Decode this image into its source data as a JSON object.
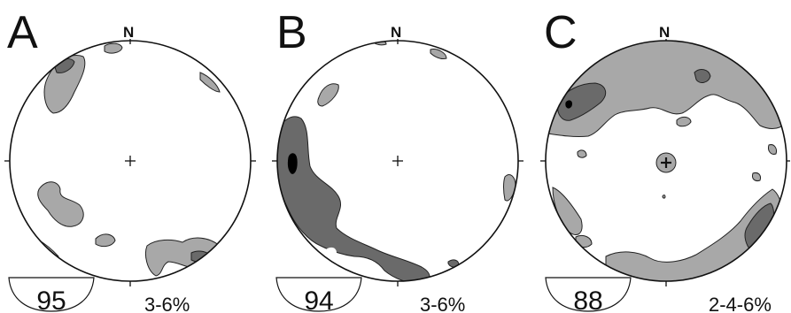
{
  "panels": [
    {
      "letter": "A",
      "north": "N",
      "count": "95",
      "contours": "3-6%"
    },
    {
      "letter": "B",
      "north": "N",
      "count": "94",
      "contours": "3-6%"
    },
    {
      "letter": "C",
      "north": "N",
      "count": "88",
      "contours": "2-4-6%"
    }
  ],
  "colors": {
    "low_density": "#a8a8a8",
    "mid_density": "#6a6a6a",
    "high_density": "#000000"
  }
}
